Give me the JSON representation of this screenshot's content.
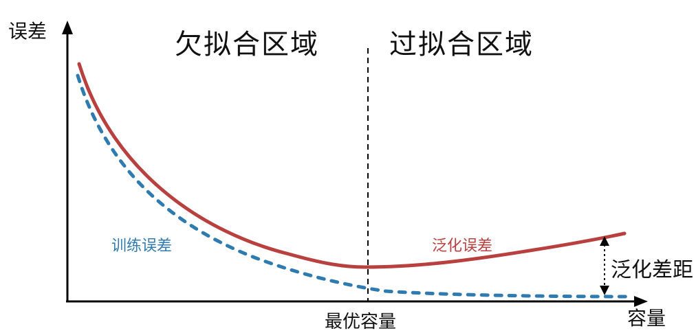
{
  "axes": {
    "y_label": "误差",
    "x_label": "容量"
  },
  "regions": {
    "left_title": "欠拟合区域",
    "right_title": "过拟合区域"
  },
  "optimal_label": "最优容量",
  "annotations": {
    "gap_label": "泛化差距"
  },
  "curves": {
    "training": {
      "label": "训练误差",
      "color": "#2f7bb0",
      "style": "dashed"
    },
    "generalization": {
      "label": "泛化误差",
      "color": "#b8403f",
      "style": "solid"
    }
  }
}
